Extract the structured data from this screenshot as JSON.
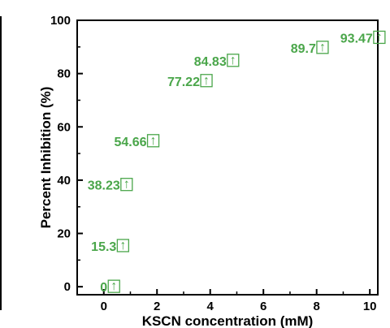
{
  "chart_data": {
    "type": "scatter",
    "title": "",
    "xlabel": "KSCN concentration (mM)",
    "ylabel": "Percent Inhibition (%)",
    "xlim": [
      -1,
      10.3
    ],
    "ylim": [
      -3,
      100
    ],
    "xticks": [
      0,
      2,
      4,
      6,
      8,
      10
    ],
    "yticks": [
      0,
      20,
      40,
      60,
      80,
      100
    ],
    "grid": false,
    "label_color": "#4aa64a",
    "points": [
      {
        "x": 0,
        "y": 0,
        "label": "0"
      },
      {
        "x": 0,
        "y": 15.3,
        "label": "15.3"
      },
      {
        "x": 0,
        "y": 38.23,
        "label": "38.23"
      },
      {
        "x": 1,
        "y": 54.66,
        "label": "54.66"
      },
      {
        "x": 3,
        "y": 77.22,
        "label": "77.22"
      },
      {
        "x": 4,
        "y": 84.83,
        "label": "84.83"
      },
      {
        "x": 7.5,
        "y": 89.7,
        "label": "89.7"
      },
      {
        "x": 9.5,
        "y": 93.47,
        "label": "93.47"
      }
    ],
    "label_suffix_glyph": "↑"
  }
}
